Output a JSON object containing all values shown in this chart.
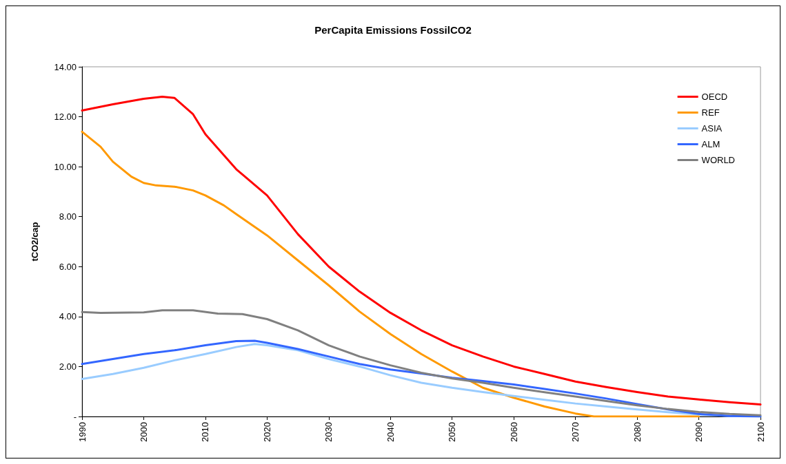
{
  "chart_data": {
    "type": "line",
    "title": "PerCapita Emissions FossilCO2",
    "ylabel": "tCO2/cap",
    "xlim": [
      1990,
      2100
    ],
    "xticks": [
      1990,
      2000,
      2010,
      2020,
      2030,
      2040,
      2050,
      2060,
      2070,
      2080,
      2090,
      2100
    ],
    "ylim": [
      0,
      14
    ],
    "yticks": [
      {
        "value": 0,
        "label": "-"
      },
      {
        "value": 2,
        "label": "2.00"
      },
      {
        "value": 4,
        "label": "4.00"
      },
      {
        "value": 6,
        "label": "6.00"
      },
      {
        "value": 8,
        "label": "8.00"
      },
      {
        "value": 10,
        "label": "10.00"
      },
      {
        "value": 12,
        "label": "12.00"
      },
      {
        "value": 14,
        "label": "14.00"
      }
    ],
    "grid": false,
    "legend": "top right",
    "marker": "none",
    "line_style": "solid",
    "series": [
      {
        "name": "OECD",
        "color": "#ff0000",
        "x": [
          1990,
          1995,
          2000,
          2003,
          2005,
          2008,
          2010,
          2015,
          2020,
          2025,
          2030,
          2035,
          2040,
          2045,
          2050,
          2055,
          2060,
          2065,
          2070,
          2075,
          2080,
          2085,
          2090,
          2095,
          2100
        ],
        "values": [
          12.25,
          12.5,
          12.72,
          12.8,
          12.75,
          12.1,
          11.3,
          9.9,
          8.85,
          7.3,
          6.0,
          5.0,
          4.15,
          3.45,
          2.85,
          2.4,
          2.0,
          1.7,
          1.4,
          1.18,
          0.98,
          0.8,
          0.68,
          0.57,
          0.48
        ]
      },
      {
        "name": "REF",
        "color": "#ff9900",
        "x": [
          1990,
          1993,
          1995,
          1998,
          2000,
          2002,
          2005,
          2008,
          2010,
          2013,
          2015,
          2020,
          2025,
          2030,
          2035,
          2040,
          2045,
          2050,
          2055,
          2060,
          2065,
          2070,
          2073,
          2080,
          2090
        ],
        "values": [
          11.4,
          10.8,
          10.2,
          9.6,
          9.35,
          9.25,
          9.2,
          9.05,
          8.85,
          8.45,
          8.1,
          7.25,
          6.25,
          5.25,
          4.2,
          3.3,
          2.5,
          1.8,
          1.15,
          0.75,
          0.4,
          0.12,
          0,
          0,
          0
        ]
      },
      {
        "name": "ASIA",
        "color": "#99ccff",
        "x": [
          1990,
          1995,
          2000,
          2005,
          2010,
          2015,
          2018,
          2020,
          2025,
          2030,
          2035,
          2040,
          2045,
          2050,
          2055,
          2060,
          2065,
          2070,
          2075,
          2080,
          2085,
          2090,
          2095,
          2100
        ],
        "values": [
          1.5,
          1.7,
          1.95,
          2.25,
          2.5,
          2.78,
          2.9,
          2.85,
          2.65,
          2.3,
          2.0,
          1.65,
          1.35,
          1.15,
          0.98,
          0.82,
          0.67,
          0.52,
          0.4,
          0.28,
          0.17,
          0.08,
          0.02,
          0
        ]
      },
      {
        "name": "ALM",
        "color": "#3366ff",
        "x": [
          1990,
          1995,
          2000,
          2005,
          2010,
          2015,
          2018,
          2020,
          2025,
          2030,
          2035,
          2040,
          2045,
          2050,
          2055,
          2060,
          2065,
          2070,
          2075,
          2080,
          2085,
          2090,
          2095,
          2100
        ],
        "values": [
          2.1,
          2.3,
          2.5,
          2.65,
          2.85,
          3.02,
          3.03,
          2.95,
          2.7,
          2.4,
          2.1,
          1.88,
          1.72,
          1.55,
          1.42,
          1.28,
          1.1,
          0.92,
          0.72,
          0.5,
          0.28,
          0.1,
          0.02,
          0
        ]
      },
      {
        "name": "WORLD",
        "color": "#808080",
        "x": [
          1990,
          1993,
          2000,
          2003,
          2008,
          2012,
          2016,
          2020,
          2025,
          2030,
          2035,
          2040,
          2045,
          2050,
          2055,
          2060,
          2065,
          2070,
          2075,
          2080,
          2085,
          2090,
          2095,
          2100
        ],
        "values": [
          4.18,
          4.15,
          4.17,
          4.25,
          4.25,
          4.12,
          4.1,
          3.9,
          3.45,
          2.85,
          2.4,
          2.05,
          1.75,
          1.52,
          1.35,
          1.15,
          0.97,
          0.8,
          0.62,
          0.45,
          0.3,
          0.18,
          0.1,
          0.05
        ]
      }
    ]
  }
}
